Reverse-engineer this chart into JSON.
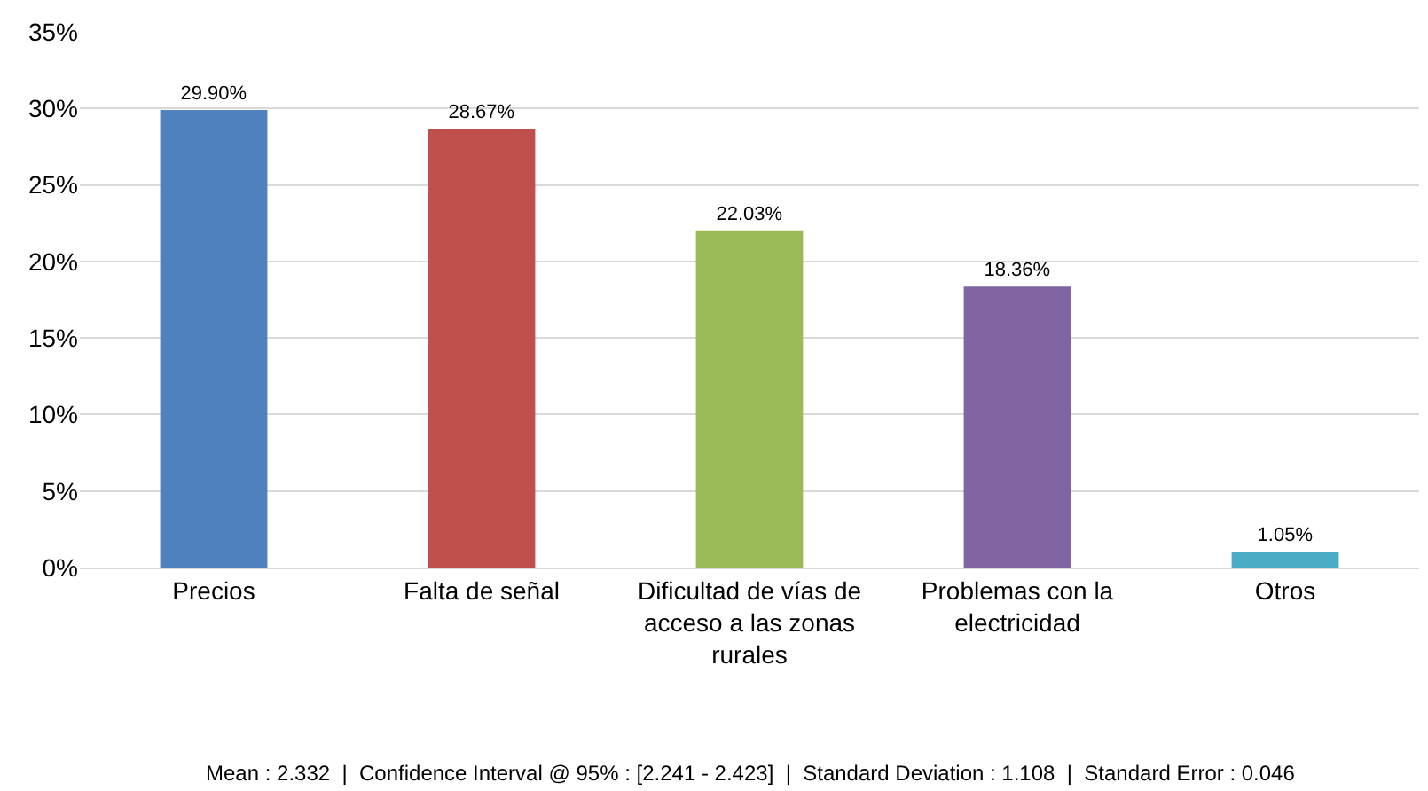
{
  "chart_data": {
    "type": "bar",
    "categories": [
      "Precios",
      "Falta de señal",
      "Dificultad de vías de acceso a las zonas rurales",
      "Problemas con la electricidad",
      "Otros"
    ],
    "values": [
      29.9,
      28.67,
      22.03,
      18.36,
      1.05
    ],
    "colors": [
      "#4f81bd",
      "#c0504d",
      "#9bbb59",
      "#8064a2",
      "#4bacc6"
    ],
    "value_labels": [
      "29.90%",
      "28.67%",
      "22.03%",
      "18.36%",
      "1.05%"
    ],
    "ylim": [
      0,
      35
    ],
    "yticks": [
      {
        "value": 0,
        "label": "0%"
      },
      {
        "value": 5,
        "label": "5%"
      },
      {
        "value": 10,
        "label": "10%"
      },
      {
        "value": 15,
        "label": "15%"
      },
      {
        "value": 20,
        "label": "20%"
      },
      {
        "value": 25,
        "label": "25%"
      },
      {
        "value": 30,
        "label": "30%"
      },
      {
        "value": 35,
        "label": "35%"
      }
    ],
    "grid": "y",
    "annotations": [
      "Mean : 2.332  |  Confidence Interval @ 95% : [2.241 - 2.423]  |  Standard Deviation : 1.108  |  Standard Error : 0.046"
    ]
  }
}
